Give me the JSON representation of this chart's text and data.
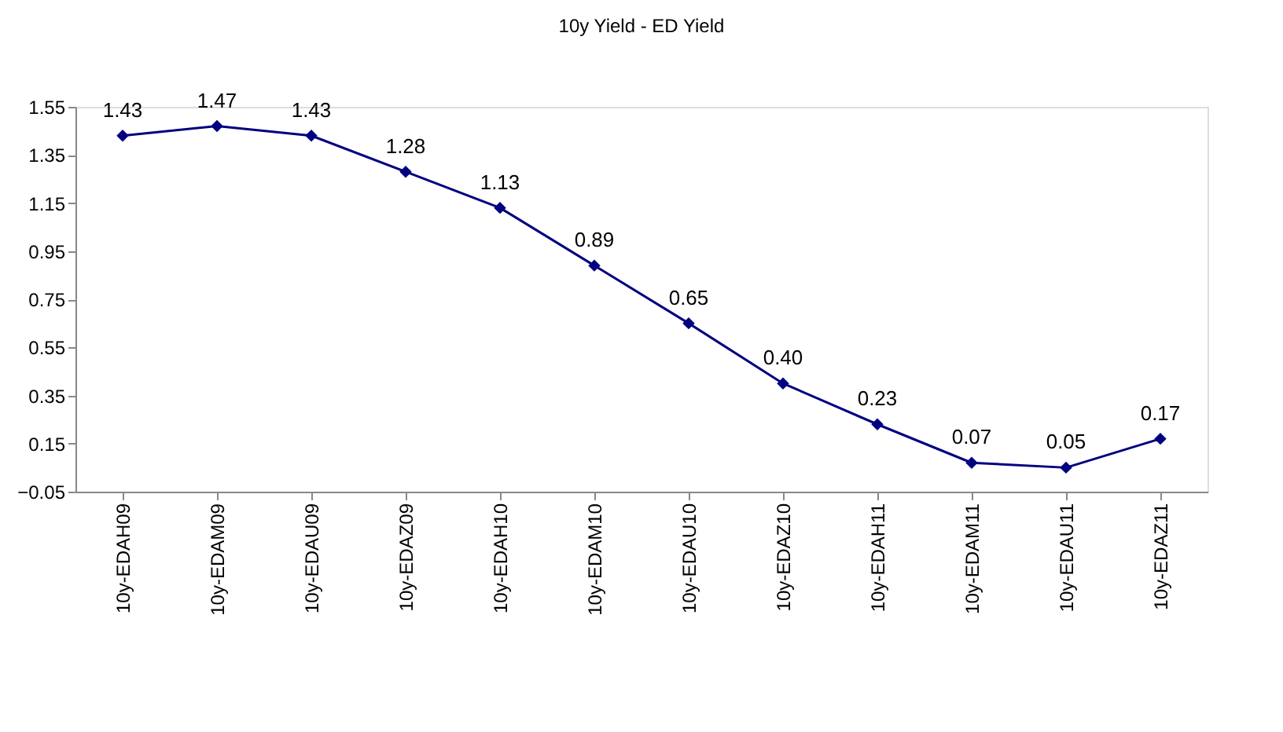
{
  "chart_data": {
    "type": "line",
    "title": "10y Yield - ED Yield",
    "categories": [
      "10y-EDAH09",
      "10y-EDAM09",
      "10y-EDAU09",
      "10y-EDAZ09",
      "10y-EDAH10",
      "10y-EDAM10",
      "10y-EDAU10",
      "10y-EDAZ10",
      "10y-EDAH11",
      "10y-EDAM11",
      "10y-EDAU11",
      "10y-EDAZ11"
    ],
    "series": [
      {
        "color": "#000080",
        "values": [
          1.43,
          1.47,
          1.43,
          1.28,
          1.13,
          0.89,
          0.65,
          0.4,
          0.23,
          0.07,
          0.05,
          0.17
        ],
        "value_labels": [
          "1.43",
          "1.47",
          "1.43",
          "1.28",
          "1.13",
          "0.89",
          "0.65",
          "0.40",
          "0.23",
          "0.07",
          "0.05",
          "0.17"
        ]
      }
    ],
    "ylim": [
      -0.05,
      1.55
    ],
    "yticks": [
      -0.05,
      0.15,
      0.35,
      0.55,
      0.75,
      0.95,
      1.15,
      1.35,
      1.55
    ],
    "marker": "diamond",
    "line_style": "solid",
    "grid": false
  }
}
